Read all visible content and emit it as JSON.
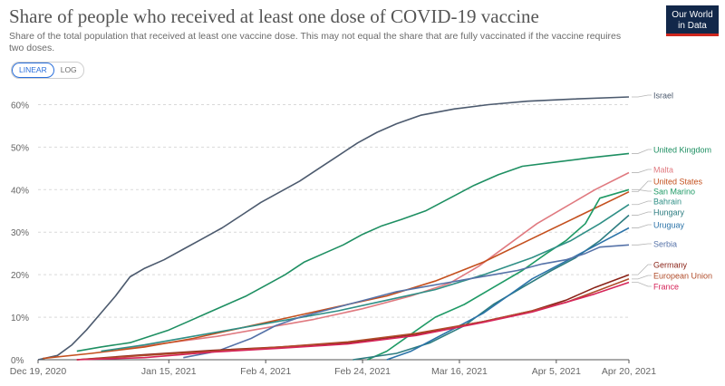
{
  "header": {
    "title": "Share of people who received at least one dose of COVID-19 vaccine",
    "subtitle": "Share of the total population that received at least one vaccine dose. This may not equal the share that are fully vaccinated if the vaccine requires two doses.",
    "logo_line1": "Our World",
    "logo_line2": "in Data"
  },
  "controls": {
    "linear_label": "LINEAR",
    "log_label": "LOG",
    "selected": "LINEAR"
  },
  "colors": {
    "Israel": "#4c5a6e",
    "United Kingdom": "#1e8f62",
    "Malta": "#e07a80",
    "United States": "#c4501e",
    "San Marino": "#1f9a66",
    "Bahrain": "#2f8f86",
    "Hungary": "#2c7c80",
    "Uruguay": "#2b73a8",
    "Serbia": "#5572a8",
    "Germany": "#8a2318",
    "European Union": "#b04c2a",
    "France": "#d6255a",
    "grid": "#d9d9d9",
    "axis": "#555555"
  },
  "chart_data": {
    "type": "line",
    "title": "Share of people who received at least one dose of COVID-19 vaccine",
    "xlabel": "",
    "ylabel": "",
    "y_unit": "%",
    "ylim": [
      0,
      65
    ],
    "xlim": [
      "2020-12-19",
      "2021-04-20"
    ],
    "x_ticks": [
      "Dec 19, 2020",
      "Jan 15, 2021",
      "Feb 4, 2021",
      "Feb 24, 2021",
      "Mar 16, 2021",
      "Apr 5, 2021",
      "Apr 20, 2021"
    ],
    "x_tick_dates": [
      "2020-12-19",
      "2021-01-15",
      "2021-02-04",
      "2021-02-24",
      "2021-03-16",
      "2021-04-05",
      "2021-04-20"
    ],
    "y_ticks": [
      "0%",
      "10%",
      "20%",
      "30%",
      "40%",
      "50%",
      "60%"
    ],
    "y_tick_values": [
      0,
      10,
      20,
      30,
      40,
      50,
      60
    ],
    "grid": "horizontal dashed",
    "legend": "right, labels at line ends",
    "series": [
      {
        "name": "Israel",
        "points": [
          [
            "2020-12-19",
            0
          ],
          [
            "2020-12-23",
            1
          ],
          [
            "2020-12-26",
            3.5
          ],
          [
            "2020-12-29",
            7
          ],
          [
            "2021-01-01",
            11
          ],
          [
            "2021-01-04",
            15
          ],
          [
            "2021-01-07",
            19.5
          ],
          [
            "2021-01-10",
            21.5
          ],
          [
            "2021-01-14",
            23.5
          ],
          [
            "2021-01-18",
            26
          ],
          [
            "2021-01-22",
            28.5
          ],
          [
            "2021-01-26",
            31
          ],
          [
            "2021-01-30",
            34
          ],
          [
            "2021-02-03",
            37
          ],
          [
            "2021-02-07",
            39.5
          ],
          [
            "2021-02-11",
            42
          ],
          [
            "2021-02-15",
            45
          ],
          [
            "2021-02-19",
            48
          ],
          [
            "2021-02-23",
            51
          ],
          [
            "2021-02-27",
            53.5
          ],
          [
            "2021-03-03",
            55.5
          ],
          [
            "2021-03-08",
            57.5
          ],
          [
            "2021-03-15",
            59
          ],
          [
            "2021-03-22",
            60
          ],
          [
            "2021-03-30",
            60.8
          ],
          [
            "2021-04-08",
            61.3
          ],
          [
            "2021-04-20",
            61.8
          ]
        ]
      },
      {
        "name": "United Kingdom",
        "points": [
          [
            "2020-12-27",
            2
          ],
          [
            "2021-01-01",
            3
          ],
          [
            "2021-01-07",
            4
          ],
          [
            "2021-01-11",
            5.5
          ],
          [
            "2021-01-15",
            7
          ],
          [
            "2021-01-19",
            9
          ],
          [
            "2021-01-23",
            11
          ],
          [
            "2021-01-27",
            13
          ],
          [
            "2021-01-31",
            15
          ],
          [
            "2021-02-04",
            17.5
          ],
          [
            "2021-02-08",
            20
          ],
          [
            "2021-02-12",
            23
          ],
          [
            "2021-02-16",
            25
          ],
          [
            "2021-02-20",
            27
          ],
          [
            "2021-02-24",
            29.5
          ],
          [
            "2021-02-28",
            31.5
          ],
          [
            "2021-03-04",
            33
          ],
          [
            "2021-03-09",
            35
          ],
          [
            "2021-03-14",
            38
          ],
          [
            "2021-03-19",
            41
          ],
          [
            "2021-03-24",
            43.5
          ],
          [
            "2021-03-29",
            45.5
          ],
          [
            "2021-04-05",
            46.5
          ],
          [
            "2021-04-12",
            47.5
          ],
          [
            "2021-04-20",
            48.5
          ]
        ]
      },
      {
        "name": "Malta",
        "points": [
          [
            "2021-01-05",
            2.5
          ],
          [
            "2021-01-15",
            4
          ],
          [
            "2021-01-25",
            5.5
          ],
          [
            "2021-02-04",
            7.5
          ],
          [
            "2021-02-14",
            9.5
          ],
          [
            "2021-02-24",
            12
          ],
          [
            "2021-03-06",
            15
          ],
          [
            "2021-03-14",
            18
          ],
          [
            "2021-03-20",
            22
          ],
          [
            "2021-03-26",
            27
          ],
          [
            "2021-04-01",
            32
          ],
          [
            "2021-04-07",
            36
          ],
          [
            "2021-04-13",
            40
          ],
          [
            "2021-04-20",
            44
          ]
        ]
      },
      {
        "name": "United States",
        "points": [
          [
            "2020-12-20",
            0.3
          ],
          [
            "2020-12-30",
            1.5
          ],
          [
            "2021-01-10",
            3
          ],
          [
            "2021-01-20",
            5
          ],
          [
            "2021-01-30",
            7.5
          ],
          [
            "2021-02-09",
            10
          ],
          [
            "2021-02-19",
            12.5
          ],
          [
            "2021-03-01",
            15
          ],
          [
            "2021-03-11",
            18.5
          ],
          [
            "2021-03-21",
            23
          ],
          [
            "2021-03-31",
            28.5
          ],
          [
            "2021-04-10",
            34
          ],
          [
            "2021-04-20",
            39.5
          ]
        ]
      },
      {
        "name": "San Marino",
        "points": [
          [
            "2021-02-25",
            0
          ],
          [
            "2021-03-01",
            2
          ],
          [
            "2021-03-06",
            6
          ],
          [
            "2021-03-11",
            10
          ],
          [
            "2021-03-17",
            13
          ],
          [
            "2021-03-23",
            17
          ],
          [
            "2021-03-29",
            21
          ],
          [
            "2021-04-03",
            25
          ],
          [
            "2021-04-07",
            28
          ],
          [
            "2021-04-11",
            32
          ],
          [
            "2021-04-14",
            38
          ],
          [
            "2021-04-20",
            40
          ]
        ]
      },
      {
        "name": "Bahrain",
        "points": [
          [
            "2021-01-01",
            2
          ],
          [
            "2021-01-10",
            3.5
          ],
          [
            "2021-01-20",
            5.5
          ],
          [
            "2021-01-30",
            7.5
          ],
          [
            "2021-02-09",
            9.5
          ],
          [
            "2021-02-19",
            11.5
          ],
          [
            "2021-03-01",
            14
          ],
          [
            "2021-03-11",
            16.5
          ],
          [
            "2021-03-21",
            20
          ],
          [
            "2021-03-31",
            24
          ],
          [
            "2021-04-08",
            28
          ],
          [
            "2021-04-14",
            32
          ],
          [
            "2021-04-20",
            36.5
          ]
        ]
      },
      {
        "name": "Hungary",
        "points": [
          [
            "2021-02-22",
            0
          ],
          [
            "2021-03-03",
            1.5
          ],
          [
            "2021-03-10",
            4
          ],
          [
            "2021-03-17",
            8
          ],
          [
            "2021-03-23",
            13
          ],
          [
            "2021-03-29",
            17
          ],
          [
            "2021-04-04",
            21
          ],
          [
            "2021-04-09",
            24
          ],
          [
            "2021-04-14",
            28
          ],
          [
            "2021-04-20",
            34
          ]
        ]
      },
      {
        "name": "Uruguay",
        "points": [
          [
            "2021-03-01",
            0
          ],
          [
            "2021-03-06",
            2
          ],
          [
            "2021-03-11",
            5
          ],
          [
            "2021-03-16",
            8
          ],
          [
            "2021-03-21",
            11
          ],
          [
            "2021-03-26",
            15
          ],
          [
            "2021-03-31",
            19
          ],
          [
            "2021-04-05",
            22
          ],
          [
            "2021-04-10",
            25
          ],
          [
            "2021-04-15",
            28
          ],
          [
            "2021-04-20",
            31
          ]
        ]
      },
      {
        "name": "Serbia",
        "points": [
          [
            "2021-01-18",
            0.5
          ],
          [
            "2021-01-25",
            2
          ],
          [
            "2021-02-01",
            5
          ],
          [
            "2021-02-06",
            8
          ],
          [
            "2021-02-11",
            10
          ],
          [
            "2021-02-16",
            11.5
          ],
          [
            "2021-02-21",
            13
          ],
          [
            "2021-02-26",
            14.5
          ],
          [
            "2021-03-03",
            16
          ],
          [
            "2021-03-08",
            17
          ],
          [
            "2021-03-13",
            18
          ],
          [
            "2021-03-18",
            19
          ],
          [
            "2021-03-23",
            20
          ],
          [
            "2021-03-28",
            21
          ],
          [
            "2021-04-02",
            22.5
          ],
          [
            "2021-04-07",
            23.5
          ],
          [
            "2021-04-11",
            25
          ],
          [
            "2021-04-14",
            26.5
          ],
          [
            "2021-04-20",
            27
          ]
        ]
      },
      {
        "name": "Germany",
        "points": [
          [
            "2020-12-27",
            0
          ],
          [
            "2021-01-10",
            1.2
          ],
          [
            "2021-01-24",
            2.2
          ],
          [
            "2021-02-07",
            3
          ],
          [
            "2021-02-21",
            4
          ],
          [
            "2021-03-07",
            6
          ],
          [
            "2021-03-21",
            9
          ],
          [
            "2021-03-31",
            11.5
          ],
          [
            "2021-04-07",
            14
          ],
          [
            "2021-04-13",
            17
          ],
          [
            "2021-04-20",
            20
          ]
        ]
      },
      {
        "name": "European Union",
        "points": [
          [
            "2020-12-27",
            0
          ],
          [
            "2021-01-10",
            1
          ],
          [
            "2021-01-24",
            2
          ],
          [
            "2021-02-07",
            3
          ],
          [
            "2021-02-21",
            4.2
          ],
          [
            "2021-03-07",
            6.2
          ],
          [
            "2021-03-21",
            9
          ],
          [
            "2021-03-31",
            11.5
          ],
          [
            "2021-04-07",
            13.5
          ],
          [
            "2021-04-13",
            16
          ],
          [
            "2021-04-20",
            19
          ]
        ]
      },
      {
        "name": "France",
        "points": [
          [
            "2020-12-27",
            0
          ],
          [
            "2021-01-10",
            0.5
          ],
          [
            "2021-01-24",
            1.8
          ],
          [
            "2021-02-07",
            2.7
          ],
          [
            "2021-02-21",
            3.7
          ],
          [
            "2021-03-07",
            5.7
          ],
          [
            "2021-03-21",
            8.8
          ],
          [
            "2021-03-31",
            11.2
          ],
          [
            "2021-04-07",
            13.5
          ],
          [
            "2021-04-13",
            15.5
          ],
          [
            "2021-04-20",
            18.2
          ]
        ]
      }
    ]
  }
}
